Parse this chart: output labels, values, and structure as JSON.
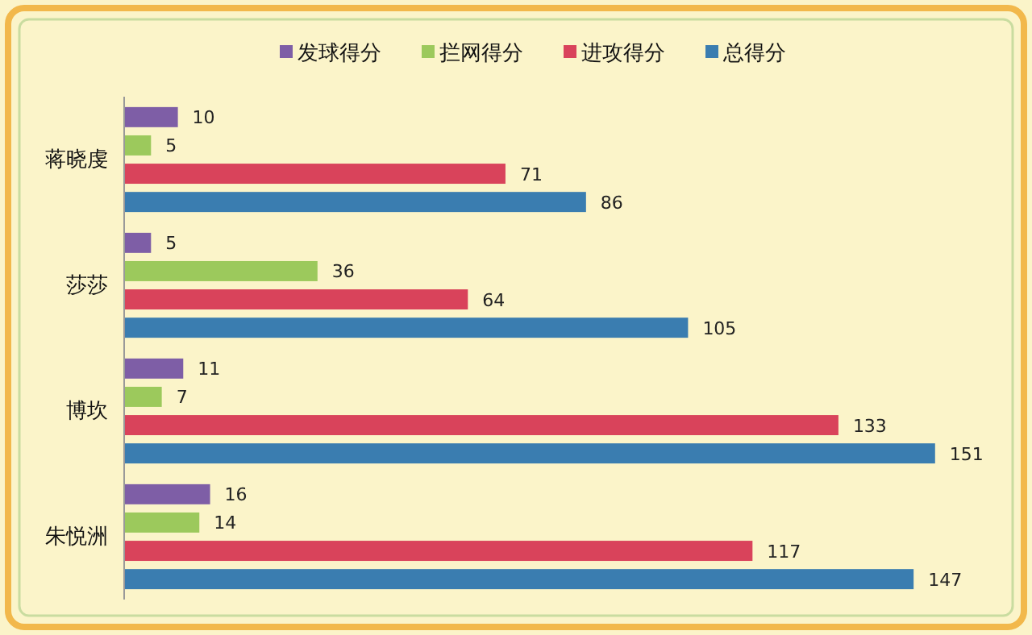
{
  "chart_data": {
    "type": "bar",
    "orientation": "horizontal",
    "categories": [
      "蒋晓虔",
      "莎莎",
      "博坎",
      "朱悦洲"
    ],
    "series": [
      {
        "name": "发球得分",
        "color": "#7e5ea6",
        "values": [
          10,
          5,
          11,
          16
        ]
      },
      {
        "name": "拦网得分",
        "color": "#9cc95c",
        "values": [
          5,
          36,
          7,
          14
        ]
      },
      {
        "name": "进攻得分",
        "color": "#d9435b",
        "values": [
          71,
          64,
          133,
          117
        ]
      },
      {
        "name": "总得分",
        "color": "#3a7db0",
        "values": [
          86,
          105,
          151,
          147
        ]
      }
    ],
    "data_labels": true,
    "legend": "top"
  }
}
